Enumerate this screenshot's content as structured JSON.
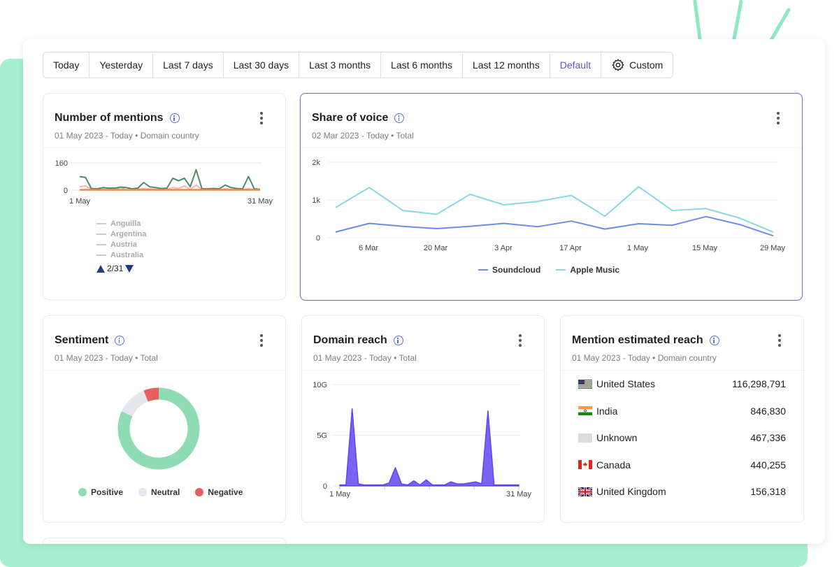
{
  "colors": {
    "accent": "#5b57d6",
    "soundcloud": "#6b8cec",
    "apple_music": "#86d8e6",
    "positive": "#8fdcb4",
    "neutral": "#e5e7ee",
    "negative": "#e85d5d",
    "domain_reach": "#6046f0"
  },
  "date_tabs": [
    "Today",
    "Yesterday",
    "Last 7 days",
    "Last 30 days",
    "Last 3 months",
    "Last 6 months",
    "Last 12 months",
    "Default",
    "Custom"
  ],
  "date_tab_active": "Default",
  "mentions": {
    "title": "Number of mentions",
    "subtitle": "01 May 2023 - Today • Domain country",
    "y_ticks": [
      "160",
      "0"
    ],
    "x_ticks": [
      "1 May",
      "31 May"
    ],
    "legend": [
      "Anguilla",
      "Argentina",
      "Austria",
      "Australia"
    ],
    "pager": "2/31"
  },
  "share_of_voice": {
    "title": "Share of voice",
    "subtitle": "02 Mar 2023 - Today • Total",
    "legend": [
      "Soundcloud",
      "Apple Music"
    ]
  },
  "sentiment": {
    "title": "Sentiment",
    "subtitle": "01 May 2023 - Today • Total",
    "legend": [
      "Positive",
      "Neutral",
      "Negative"
    ]
  },
  "domain_reach": {
    "title": "Domain reach",
    "subtitle": "01 May 2023 - Today • Total"
  },
  "mention_reach": {
    "title": "Mention estimated reach",
    "subtitle": "01 May 2023 - Today • Domain country",
    "rows": [
      {
        "country": "United States",
        "value": "116,298,791",
        "flag": "us-flag-icon"
      },
      {
        "country": "India",
        "value": "846,830",
        "flag": "india-flag-icon"
      },
      {
        "country": "Unknown",
        "value": "467,336",
        "flag": "unknown-flag-icon"
      },
      {
        "country": "Canada",
        "value": "440,255",
        "flag": "canada-flag-icon"
      },
      {
        "country": "United Kingdom",
        "value": "156,318",
        "flag": "uk-flag-icon"
      }
    ]
  },
  "chart_data": [
    {
      "type": "line",
      "title": "Number of mentions",
      "x_ticks": [
        "1 May",
        "31 May"
      ],
      "ylim": [
        0,
        160
      ],
      "series": [
        {
          "name": "",
          "values": [
            80,
            75,
            10,
            8,
            15,
            12,
            12,
            18,
            15,
            8,
            12,
            45,
            20,
            15,
            10,
            12,
            70,
            55,
            70,
            20,
            120,
            8,
            8,
            10,
            8,
            30,
            15,
            10,
            8,
            80,
            8,
            5
          ]
        },
        {
          "name": "",
          "values": [
            2,
            2,
            2,
            2,
            2,
            2,
            2,
            2,
            2,
            2,
            2,
            2,
            2,
            2,
            2,
            2,
            2,
            2,
            2,
            2,
            2,
            2,
            2,
            2,
            2,
            2,
            2,
            2,
            2,
            2,
            2,
            2
          ]
        },
        {
          "name": "",
          "values": [
            20,
            25,
            5,
            3,
            5,
            5,
            3,
            15,
            3,
            3,
            5,
            10,
            8,
            5,
            3,
            5,
            15,
            10,
            25,
            5,
            30,
            3,
            3,
            5,
            3,
            8,
            5,
            3,
            3,
            10,
            3,
            2
          ]
        }
      ]
    },
    {
      "type": "line",
      "title": "Share of voice",
      "x_ticks": [
        "6 Mar",
        "20 Mar",
        "3 Apr",
        "17 Apr",
        "1 May",
        "15 May",
        "29 May"
      ],
      "y_ticks": [
        "2k",
        "1k",
        "0"
      ],
      "ylim": [
        0,
        2000
      ],
      "series": [
        {
          "name": "Soundcloud",
          "values": [
            150,
            380,
            300,
            240,
            300,
            380,
            290,
            440,
            230,
            370,
            330,
            560,
            350,
            50
          ]
        },
        {
          "name": "Apple Music",
          "values": [
            800,
            1330,
            720,
            620,
            1150,
            870,
            960,
            1120,
            570,
            1350,
            720,
            770,
            520,
            150
          ]
        }
      ]
    },
    {
      "type": "pie",
      "title": "Sentiment",
      "categories": [
        "Positive",
        "Neutral",
        "Negative"
      ],
      "values": [
        82,
        12,
        6
      ]
    },
    {
      "type": "area",
      "title": "Domain reach",
      "x_ticks": [
        "1 May",
        "31 May"
      ],
      "y_ticks": [
        "10G",
        "5G",
        "0"
      ],
      "ylim": [
        0,
        10
      ],
      "values": [
        0.1,
        0.1,
        7.6,
        0.2,
        0.1,
        0.1,
        0.1,
        0.1,
        0.3,
        1.8,
        0.2,
        0.1,
        0.5,
        0.1,
        0.6,
        0.1,
        0.1,
        0.1,
        0.4,
        0.2,
        0.2,
        0.3,
        0.4,
        0.2,
        7.4,
        0.1,
        0.1,
        0.1,
        0.1,
        0.1
      ]
    }
  ]
}
